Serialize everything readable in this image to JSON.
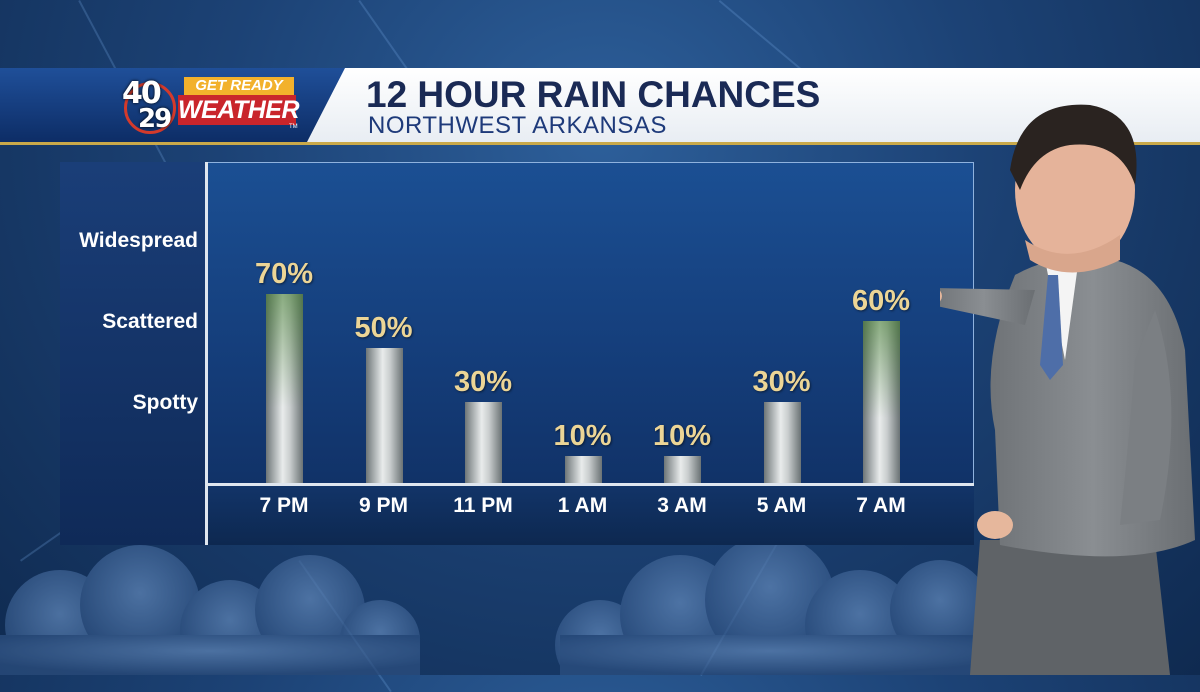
{
  "header": {
    "logo_number_top": "40",
    "logo_number_bottom": "29",
    "logo_tagline": "GET READY",
    "logo_word": "WEATHER",
    "logo_tm": "TM",
    "title": "12 HOUR RAIN CHANCES",
    "subtitle": "NORTHWEST ARKANSAS"
  },
  "colors": {
    "value_text": "#ecd596",
    "accent_gold": "#c9a94a",
    "logo_red": "#c9252b",
    "logo_orange": "#f2b12c"
  },
  "chart_data": {
    "type": "bar",
    "title": "12 HOUR RAIN CHANCES",
    "subtitle": "NORTHWEST ARKANSAS",
    "categories": [
      "7 PM",
      "9 PM",
      "11 PM",
      "1 AM",
      "3 AM",
      "5 AM",
      "7 AM"
    ],
    "values": [
      70,
      50,
      30,
      10,
      10,
      30,
      60
    ],
    "value_labels": [
      "70%",
      "50%",
      "30%",
      "10%",
      "10%",
      "30%",
      "60%"
    ],
    "y_category_labels": [
      "Widespread",
      "Scattered",
      "Spotty"
    ],
    "ylim": [
      0,
      100
    ],
    "grid": false,
    "legend": "none"
  }
}
